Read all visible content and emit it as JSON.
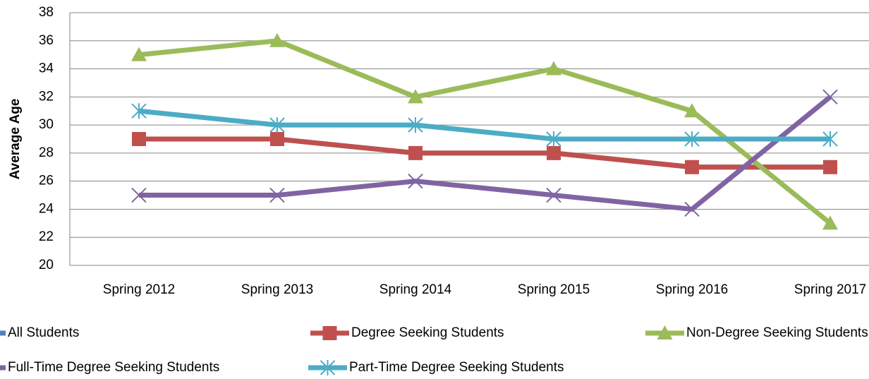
{
  "chart_data": {
    "type": "line",
    "y_label": "Average Age",
    "categories": [
      "Spring 2012",
      "Spring 2013",
      "Spring 2014",
      "Spring 2015",
      "Spring 2016",
      "Spring 2017"
    ],
    "series": [
      {
        "name": "All Students",
        "color": "#4f81bd",
        "marker": "diamond",
        "values": [
          29,
          29,
          28,
          28,
          27,
          27
        ]
      },
      {
        "name": "Degree Seeking Students",
        "color": "#c0504d",
        "marker": "square",
        "values": [
          29,
          29,
          28,
          28,
          27,
          27
        ]
      },
      {
        "name": "Non-Degree Seeking Students",
        "color": "#9bbb59",
        "marker": "triangle",
        "values": [
          35,
          36,
          32,
          34,
          31,
          23
        ]
      },
      {
        "name": "Full-Time Degree Seeking Students",
        "color": "#8064a2",
        "marker": "x",
        "values": [
          25,
          25,
          26,
          25,
          24,
          32
        ]
      },
      {
        "name": "Part-Time Degree Seeking Students",
        "color": "#4bacc6",
        "marker": "star",
        "values": [
          31,
          30,
          30,
          29,
          29,
          29
        ]
      }
    ],
    "ylim": [
      20,
      38
    ],
    "yticks": [
      20,
      22,
      24,
      26,
      28,
      30,
      32,
      34,
      36,
      38
    ],
    "grid": true,
    "legend": "bottom"
  }
}
